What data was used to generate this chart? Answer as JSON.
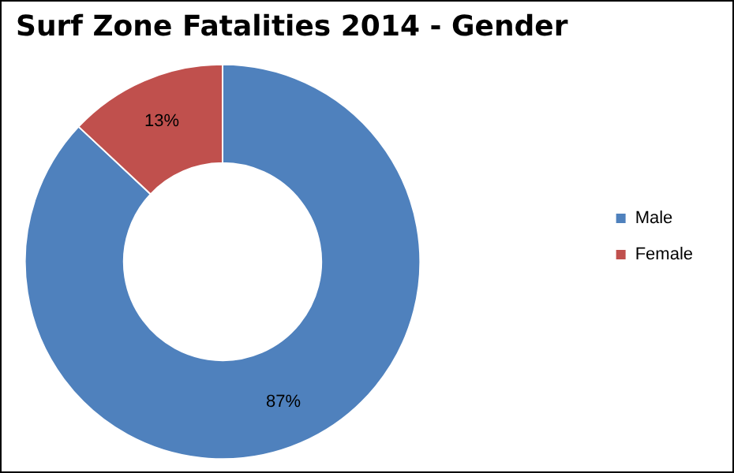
{
  "chart_data": {
    "type": "donut",
    "title": "Surf Zone Fatalities 2014 - Gender",
    "categories": [
      "Male",
      "Female"
    ],
    "values": [
      87,
      13
    ],
    "colors": [
      "#4f81bd",
      "#c0504d"
    ],
    "value_labels": [
      "87%",
      "13%"
    ],
    "legend": "right"
  }
}
